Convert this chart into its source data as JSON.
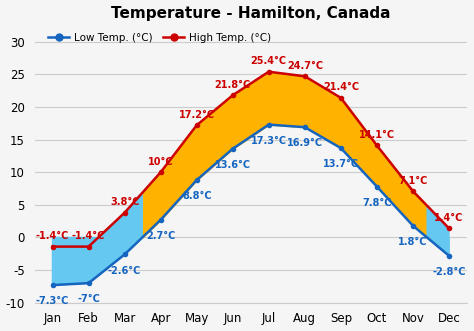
{
  "title": "Temperature - Hamilton, Canada",
  "months": [
    "Jan",
    "Feb",
    "Mar",
    "Apr",
    "May",
    "Jun",
    "Jul",
    "Aug",
    "Sep",
    "Oct",
    "Nov",
    "Dec"
  ],
  "low_temps": [
    -7.3,
    -7.0,
    -2.6,
    2.7,
    8.8,
    13.6,
    17.3,
    16.9,
    13.7,
    7.8,
    1.8,
    -2.8
  ],
  "high_temps": [
    -1.4,
    -1.4,
    3.8,
    10.0,
    17.2,
    21.8,
    25.4,
    24.7,
    21.4,
    14.1,
    7.1,
    1.4
  ],
  "low_labels": [
    "-7.3°C",
    "-7°C",
    "-2.6°C",
    "2.7°C",
    "8.8°C",
    "13.6°C",
    "17.3°C",
    "16.9°C",
    "13.7°C",
    "7.8°C",
    "1.8°C",
    "-2.8°C"
  ],
  "high_labels": [
    "-1.4°C",
    "-1.4°C",
    "3.8°C",
    "10°C",
    "17.2°C",
    "21.8°C",
    "25.4°C",
    "24.7°C",
    "21.4°C",
    "14.1°C",
    "7.1°C",
    "1.4°C"
  ],
  "low_color": "#1565c0",
  "high_color": "#cc0000",
  "fill_blue": "#64c8f0",
  "fill_orange": "#ffb300",
  "ylim": [
    -10,
    32
  ],
  "yticks": [
    -10,
    -5,
    0,
    5,
    10,
    15,
    20,
    25,
    30
  ],
  "legend_low": "Low Temp. (°C)",
  "legend_high": "High Temp. (°C)",
  "bg_color": "#f5f5f5",
  "grid_color": "#cccccc",
  "label_fontsize": 7.0,
  "title_fontsize": 11,
  "tick_fontsize": 8.5,
  "figsize": [
    4.74,
    3.31
  ],
  "dpi": 100
}
